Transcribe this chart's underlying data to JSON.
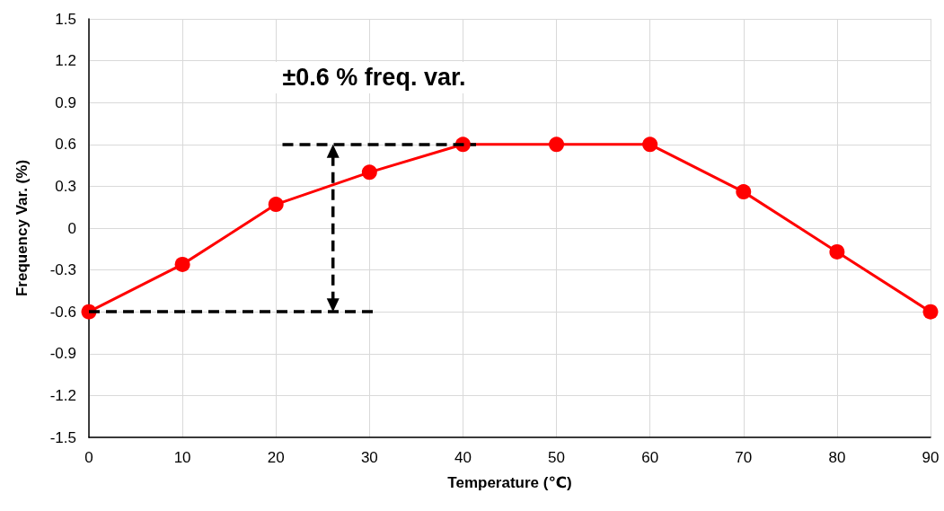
{
  "chart_data": {
    "type": "line",
    "xlabel": "Temperature (℃)",
    "ylabel": "Frequency Var. (%)",
    "x": [
      0,
      10,
      20,
      30,
      40,
      50,
      60,
      70,
      80,
      90
    ],
    "series": [
      {
        "color": "#ff0000",
        "values": [
          -0.6,
          -0.26,
          0.17,
          0.4,
          0.6,
          0.6,
          0.6,
          0.26,
          -0.17,
          -0.6
        ]
      }
    ],
    "xlim": [
      0,
      90
    ],
    "xticks": [
      0,
      10,
      20,
      30,
      40,
      50,
      60,
      70,
      80,
      90
    ],
    "ylim": [
      -1.5,
      1.5
    ],
    "yticks": [
      -1.5,
      -1.2,
      -0.9,
      -0.6,
      -0.3,
      0,
      0.3,
      0.6,
      0.9,
      1.2,
      1.5
    ],
    "ref_lines": [
      {
        "axis": "y",
        "value": 0.6,
        "color": "#000000",
        "line_style": "dashed"
      },
      {
        "axis": "y",
        "value": -0.6,
        "color": "#000000",
        "line_style": "dashed"
      }
    ],
    "annotations": [
      "±0.6 % freq. var."
    ],
    "grid": true,
    "marker": "circle",
    "line_style": "solid"
  }
}
